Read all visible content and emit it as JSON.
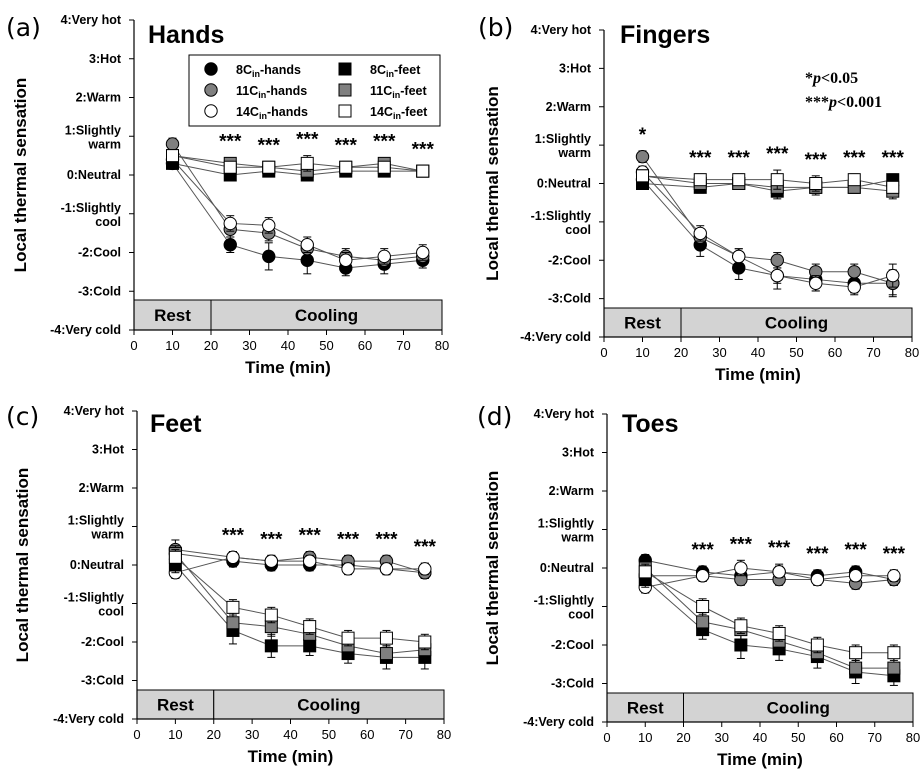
{
  "chart_data": [
    {
      "panel": "(a)",
      "title": "Hands",
      "type": "line",
      "xlabel": "Time (min)",
      "ylabel": "Local thermal sensation",
      "xlim": [
        0,
        80
      ],
      "xticks": [
        "0",
        "10",
        "20",
        "30",
        "40",
        "50",
        "60",
        "70",
        "80"
      ],
      "ylim": [
        -4,
        4
      ],
      "yticks": [
        {
          "v": 4,
          "lines": [
            "4:Very hot"
          ]
        },
        {
          "v": 3,
          "lines": [
            "3:Hot"
          ]
        },
        {
          "v": 2,
          "lines": [
            "2:Warm"
          ]
        },
        {
          "v": 1,
          "lines": [
            "1:Slightly",
            "warm"
          ]
        },
        {
          "v": 0,
          "lines": [
            "0:Neutral"
          ]
        },
        {
          "v": -1,
          "lines": [
            "-1:Slightly",
            "cool"
          ]
        },
        {
          "v": -2,
          "lines": [
            "-2:Cool"
          ]
        },
        {
          "v": -3,
          "lines": [
            "-3:Cold"
          ]
        },
        {
          "v": -4,
          "lines": [
            "-4:Very cold"
          ]
        }
      ],
      "phases": [
        {
          "label": "Rest",
          "x0": 0,
          "x1": 20
        },
        {
          "label": "Cooling",
          "x0": 20,
          "x1": 80
        }
      ],
      "x": [
        10,
        25,
        35,
        45,
        55,
        65,
        75
      ],
      "significance": [
        {
          "x": 25,
          "text": "***"
        },
        {
          "x": 35,
          "text": "***"
        },
        {
          "x": 45,
          "text": "***"
        },
        {
          "x": 55,
          "text": "***"
        },
        {
          "x": 65,
          "text": "***"
        },
        {
          "x": 75,
          "text": "***"
        }
      ],
      "legend": {
        "placement": "top-center",
        "entries": [
          {
            "series": 0,
            "main": "8C",
            "sub": "in",
            "suffix": "-hands"
          },
          {
            "series": 3,
            "main": "8C",
            "sub": "in",
            "suffix": "-feet"
          },
          {
            "series": 1,
            "main": "11C",
            "sub": "in",
            "suffix": "-hands"
          },
          {
            "series": 4,
            "main": "11C",
            "sub": "in",
            "suffix": "-feet"
          },
          {
            "series": 2,
            "main": "14C",
            "sub": "in",
            "suffix": "-hands"
          },
          {
            "series": 5,
            "main": "14C",
            "sub": "in",
            "suffix": "-feet"
          }
        ]
      },
      "series": [
        {
          "name": "8Cin-hands",
          "marker": "circle",
          "fill": "#000000",
          "values": [
            0.3,
            -1.8,
            -2.1,
            -2.2,
            -2.4,
            -2.3,
            -2.2
          ],
          "err": [
            0.15,
            0.2,
            0.35,
            0.35,
            0.2,
            0.25,
            0.2
          ]
        },
        {
          "name": "11Cin-hands",
          "marker": "circle",
          "fill": "#808080",
          "values": [
            0.8,
            -1.4,
            -1.5,
            -1.9,
            -2.1,
            -2.2,
            -2.1
          ],
          "err": [
            0.15,
            0.2,
            0.2,
            0.2,
            0.2,
            0.2,
            0.2
          ]
        },
        {
          "name": "14Cin-hands",
          "marker": "circle",
          "fill": "#ffffff",
          "values": [
            0.4,
            -1.25,
            -1.3,
            -1.8,
            -2.2,
            -2.1,
            -2.0
          ],
          "err": [
            0.15,
            0.2,
            0.2,
            0.2,
            0.2,
            0.2,
            0.2
          ]
        },
        {
          "name": "8Cin-feet",
          "marker": "square",
          "fill": "#000000",
          "values": [
            0.3,
            0.0,
            0.1,
            0.0,
            0.1,
            0.1,
            0.1
          ],
          "err": [
            0.15,
            0.15,
            0.15,
            0.15,
            0.15,
            0.15,
            0.15
          ]
        },
        {
          "name": "11Cin-feet",
          "marker": "square",
          "fill": "#808080",
          "values": [
            0.5,
            0.3,
            0.2,
            0.1,
            0.2,
            0.3,
            0.1
          ],
          "err": [
            0.15,
            0.15,
            0.15,
            0.15,
            0.15,
            0.15,
            0.15
          ]
        },
        {
          "name": "14Cin-feet",
          "marker": "square",
          "fill": "#ffffff",
          "values": [
            0.5,
            0.2,
            0.2,
            0.3,
            0.2,
            0.2,
            0.1
          ],
          "err": [
            0.15,
            0.15,
            0.15,
            0.2,
            0.15,
            0.15,
            0.15
          ]
        }
      ]
    },
    {
      "panel": "(b)",
      "title": "Fingers",
      "type": "line",
      "xlabel": "Time (min)",
      "ylabel": "Local thermal sensation",
      "xlim": [
        0,
        80
      ],
      "xticks": [
        "0",
        "10",
        "20",
        "30",
        "40",
        "50",
        "60",
        "70",
        "80"
      ],
      "ylim": [
        -4,
        4
      ],
      "yticks": [
        {
          "v": 4,
          "lines": [
            "4:Very hot"
          ]
        },
        {
          "v": 3,
          "lines": [
            "3:Hot"
          ]
        },
        {
          "v": 2,
          "lines": [
            "2:Warm"
          ]
        },
        {
          "v": 1,
          "lines": [
            "1:Slightly",
            "warm"
          ]
        },
        {
          "v": 0,
          "lines": [
            "0:Neutral"
          ]
        },
        {
          "v": -1,
          "lines": [
            "-1:Slightly",
            "cool"
          ]
        },
        {
          "v": -2,
          "lines": [
            "-2:Cool"
          ]
        },
        {
          "v": -3,
          "lines": [
            "-3:Cold"
          ]
        },
        {
          "v": -4,
          "lines": [
            "-4:Very cold"
          ]
        }
      ],
      "phases": [
        {
          "label": "Rest",
          "x0": 0,
          "x1": 20
        },
        {
          "label": "Cooling",
          "x0": 20,
          "x1": 80
        }
      ],
      "x": [
        10,
        25,
        35,
        45,
        55,
        65,
        75
      ],
      "significance": [
        {
          "x": 10,
          "text": "*"
        },
        {
          "x": 25,
          "text": "***"
        },
        {
          "x": 35,
          "text": "***"
        },
        {
          "x": 45,
          "text": "***"
        },
        {
          "x": 55,
          "text": "***"
        },
        {
          "x": 65,
          "text": "***"
        },
        {
          "x": 75,
          "text": "***"
        }
      ],
      "pnotes": [
        {
          "stars": "*",
          "p": "p",
          "rest": "<0.05"
        },
        {
          "stars": "***",
          "p": "p",
          "rest": "<0.001"
        }
      ],
      "series": [
        {
          "name": "8Cin-hands",
          "marker": "circle",
          "fill": "#000000",
          "values": [
            0.1,
            -1.6,
            -2.2,
            -2.4,
            -2.5,
            -2.6,
            -2.6
          ],
          "err": [
            0.15,
            0.3,
            0.3,
            0.35,
            0.3,
            0.25,
            0.35
          ]
        },
        {
          "name": "11Cin-hands",
          "marker": "circle",
          "fill": "#808080",
          "values": [
            0.7,
            -1.4,
            -1.9,
            -2.0,
            -2.3,
            -2.3,
            -2.6
          ],
          "err": [
            0.15,
            0.2,
            0.2,
            0.2,
            0.2,
            0.2,
            0.3
          ]
        },
        {
          "name": "14Cin-hands",
          "marker": "circle",
          "fill": "#ffffff",
          "values": [
            0.3,
            -1.3,
            -1.9,
            -2.4,
            -2.6,
            -2.7,
            -2.4
          ],
          "err": [
            0.15,
            0.2,
            0.2,
            0.2,
            0.2,
            0.2,
            0.3
          ]
        },
        {
          "name": "8Cin-feet",
          "marker": "square",
          "fill": "#000000",
          "values": [
            0.0,
            -0.1,
            0.0,
            -0.2,
            -0.1,
            -0.1,
            0.1
          ],
          "err": [
            0.15,
            0.15,
            0.15,
            0.2,
            0.15,
            0.15,
            0.15
          ]
        },
        {
          "name": "11Cin-feet",
          "marker": "square",
          "fill": "#808080",
          "values": [
            0.2,
            0.0,
            0.0,
            -0.1,
            -0.1,
            -0.1,
            -0.2
          ],
          "err": [
            0.15,
            0.15,
            0.15,
            0.2,
            0.2,
            0.15,
            0.2
          ]
        },
        {
          "name": "14Cin-feet",
          "marker": "square",
          "fill": "#ffffff",
          "values": [
            0.2,
            0.1,
            0.1,
            0.1,
            0.0,
            0.1,
            -0.1
          ],
          "err": [
            0.15,
            0.15,
            0.15,
            0.25,
            0.2,
            0.15,
            0.15
          ]
        }
      ]
    },
    {
      "panel": "(c)",
      "title": "Feet",
      "type": "line",
      "xlabel": "Time (min)",
      "ylabel": "Local thermal sensation",
      "xlim": [
        0,
        80
      ],
      "xticks": [
        "0",
        "10",
        "20",
        "30",
        "40",
        "50",
        "60",
        "70",
        "80"
      ],
      "ylim": [
        -4,
        4
      ],
      "yticks": [
        {
          "v": 4,
          "lines": [
            "4:Very hot"
          ]
        },
        {
          "v": 3,
          "lines": [
            "3:Hot"
          ]
        },
        {
          "v": 2,
          "lines": [
            "2:Warm"
          ]
        },
        {
          "v": 1,
          "lines": [
            "1:Slightly",
            "warm"
          ]
        },
        {
          "v": 0,
          "lines": [
            "0:Neutral"
          ]
        },
        {
          "v": -1,
          "lines": [
            "-1:Slightly",
            "cool"
          ]
        },
        {
          "v": -2,
          "lines": [
            "-2:Cool"
          ]
        },
        {
          "v": -3,
          "lines": [
            "-3:Cold"
          ]
        },
        {
          "v": -4,
          "lines": [
            "-4:Very cold"
          ]
        }
      ],
      "phases": [
        {
          "label": "Rest",
          "x0": 0,
          "x1": 20
        },
        {
          "label": "Cooling",
          "x0": 20,
          "x1": 80
        }
      ],
      "x": [
        10,
        25,
        35,
        45,
        55,
        65,
        75
      ],
      "significance": [
        {
          "x": 25,
          "text": "***"
        },
        {
          "x": 35,
          "text": "***"
        },
        {
          "x": 45,
          "text": "***"
        },
        {
          "x": 55,
          "text": "***"
        },
        {
          "x": 65,
          "text": "***"
        },
        {
          "x": 75,
          "text": "***"
        }
      ],
      "series": [
        {
          "name": "8Cin-hands",
          "marker": "circle",
          "fill": "#000000",
          "values": [
            0.3,
            0.1,
            0.0,
            0.0,
            0.0,
            -0.1,
            -0.2
          ],
          "err": [
            0.2,
            0.15,
            0.15,
            0.15,
            0.15,
            0.15,
            0.15
          ]
        },
        {
          "name": "11Cin-hands",
          "marker": "circle",
          "fill": "#808080",
          "values": [
            0.4,
            0.2,
            0.1,
            0.2,
            0.1,
            0.1,
            -0.2
          ],
          "err": [
            0.25,
            0.15,
            0.15,
            0.15,
            0.15,
            0.15,
            0.15
          ]
        },
        {
          "name": "14Cin-hands",
          "marker": "circle",
          "fill": "#ffffff",
          "values": [
            -0.2,
            0.2,
            0.1,
            0.1,
            -0.1,
            -0.1,
            -0.1
          ],
          "err": [
            0.15,
            0.15,
            0.15,
            0.15,
            0.15,
            0.15,
            0.15
          ]
        },
        {
          "name": "8Cin-feet",
          "marker": "square",
          "fill": "#000000",
          "values": [
            0.0,
            -1.7,
            -2.1,
            -2.1,
            -2.3,
            -2.4,
            -2.4
          ],
          "err": [
            0.2,
            0.35,
            0.3,
            0.25,
            0.25,
            0.3,
            0.3
          ]
        },
        {
          "name": "11Cin-feet",
          "marker": "square",
          "fill": "#808080",
          "values": [
            0.3,
            -1.5,
            -1.6,
            -1.8,
            -2.1,
            -2.3,
            -2.2
          ],
          "err": [
            0.2,
            0.25,
            0.25,
            0.25,
            0.25,
            0.25,
            0.25
          ]
        },
        {
          "name": "14Cin-feet",
          "marker": "square",
          "fill": "#ffffff",
          "values": [
            0.2,
            -1.1,
            -1.3,
            -1.6,
            -1.9,
            -1.9,
            -2.0
          ],
          "err": [
            0.2,
            0.2,
            0.2,
            0.2,
            0.2,
            0.2,
            0.2
          ]
        }
      ]
    },
    {
      "panel": "(d)",
      "title": "Toes",
      "type": "line",
      "xlabel": "Time (min)",
      "ylabel": "Local thermal sensation",
      "xlim": [
        0,
        80
      ],
      "xticks": [
        "0",
        "10",
        "20",
        "30",
        "40",
        "50",
        "60",
        "70",
        "80"
      ],
      "ylim": [
        -4,
        4
      ],
      "yticks": [
        {
          "v": 4,
          "lines": [
            "4:Very hot"
          ]
        },
        {
          "v": 3,
          "lines": [
            "3:Hot"
          ]
        },
        {
          "v": 2,
          "lines": [
            "2:Warm"
          ]
        },
        {
          "v": 1,
          "lines": [
            "1:Slightly",
            "warm"
          ]
        },
        {
          "v": 0,
          "lines": [
            "0:Neutral"
          ]
        },
        {
          "v": -1,
          "lines": [
            "-1:Slightly",
            "cool"
          ]
        },
        {
          "v": -2,
          "lines": [
            "-2:Cool"
          ]
        },
        {
          "v": -3,
          "lines": [
            "-3:Cold"
          ]
        },
        {
          "v": -4,
          "lines": [
            "-4:Very cold"
          ]
        }
      ],
      "phases": [
        {
          "label": "Rest",
          "x0": 0,
          "x1": 20
        },
        {
          "label": "Cooling",
          "x0": 20,
          "x1": 80
        }
      ],
      "x": [
        10,
        25,
        35,
        45,
        55,
        65,
        75
      ],
      "significance": [
        {
          "x": 25,
          "text": "***"
        },
        {
          "x": 35,
          "text": "***"
        },
        {
          "x": 45,
          "text": "***"
        },
        {
          "x": 55,
          "text": "***"
        },
        {
          "x": 65,
          "text": "***"
        },
        {
          "x": 75,
          "text": "***"
        }
      ],
      "series": [
        {
          "name": "8Cin-hands",
          "marker": "circle",
          "fill": "#000000",
          "values": [
            0.2,
            -0.1,
            -0.2,
            -0.1,
            -0.2,
            -0.1,
            -0.3
          ],
          "err": [
            0.15,
            0.15,
            0.15,
            0.2,
            0.15,
            0.15,
            0.15
          ]
        },
        {
          "name": "11Cin-hands",
          "marker": "circle",
          "fill": "#808080",
          "values": [
            -0.2,
            -0.2,
            -0.3,
            -0.3,
            -0.3,
            -0.4,
            -0.3
          ],
          "err": [
            0.15,
            0.15,
            0.15,
            0.15,
            0.15,
            0.15,
            0.15
          ]
        },
        {
          "name": "14Cin-hands",
          "marker": "circle",
          "fill": "#ffffff",
          "values": [
            -0.5,
            -0.2,
            0.0,
            -0.1,
            -0.3,
            -0.2,
            -0.2
          ],
          "err": [
            0.15,
            0.15,
            0.2,
            0.15,
            0.15,
            0.15,
            0.15
          ]
        },
        {
          "name": "8Cin-feet",
          "marker": "square",
          "fill": "#000000",
          "values": [
            -0.3,
            -1.6,
            -2.0,
            -2.1,
            -2.3,
            -2.7,
            -2.8
          ],
          "err": [
            0.2,
            0.25,
            0.35,
            0.3,
            0.3,
            0.3,
            0.25
          ]
        },
        {
          "name": "11Cin-feet",
          "marker": "square",
          "fill": "#808080",
          "values": [
            0.0,
            -1.4,
            -1.6,
            -1.9,
            -2.2,
            -2.6,
            -2.6
          ],
          "err": [
            0.2,
            0.25,
            0.25,
            0.25,
            0.25,
            0.25,
            0.25
          ]
        },
        {
          "name": "14Cin-feet",
          "marker": "square",
          "fill": "#ffffff",
          "values": [
            -0.1,
            -1.0,
            -1.5,
            -1.7,
            -2.0,
            -2.2,
            -2.2
          ],
          "err": [
            0.2,
            0.2,
            0.2,
            0.2,
            0.2,
            0.2,
            0.2
          ]
        }
      ]
    }
  ]
}
